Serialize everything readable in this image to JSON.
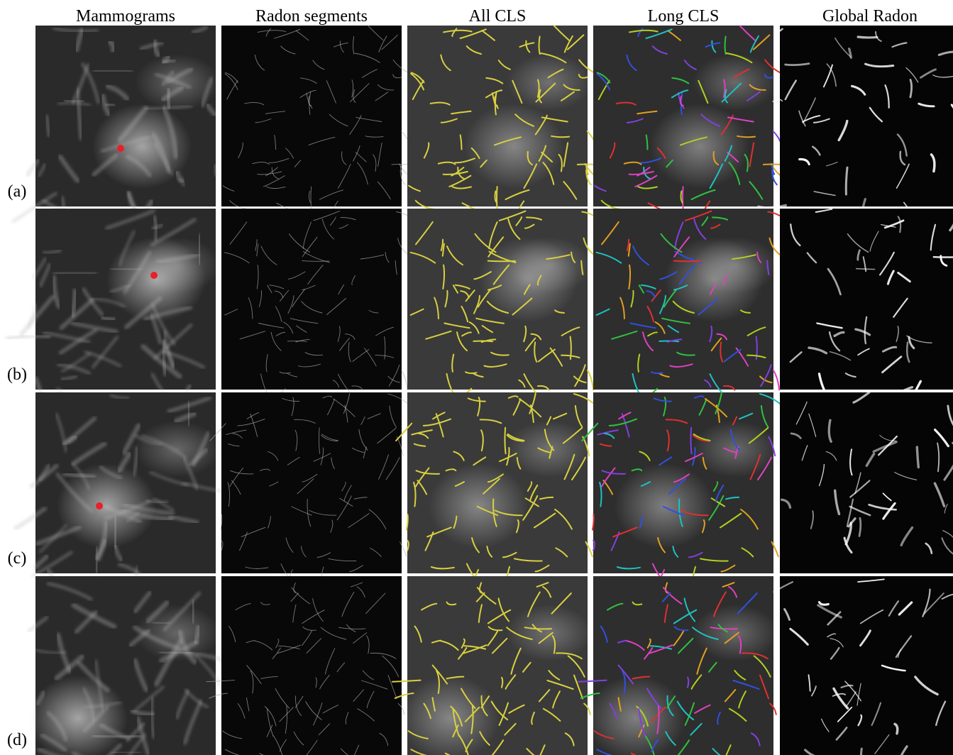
{
  "figure": {
    "columns": [
      "Mammograms",
      "Radon segments",
      "All CLS",
      "Long CLS",
      "Global Radon"
    ],
    "rows": [
      "(a)",
      "(b)",
      "(c)",
      "(d)"
    ]
  }
}
